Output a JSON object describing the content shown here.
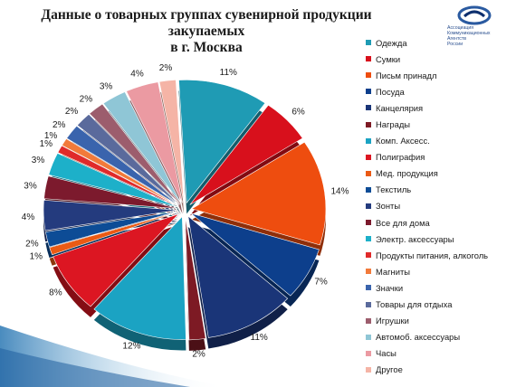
{
  "title_lines": [
    "Данные о товарных группах сувенирной продукции закупаемых",
    "в г. Москва"
  ],
  "logo": {
    "lines": [
      "Ассоциация",
      "Коммуникационных",
      "Агентств",
      "России"
    ]
  },
  "chart_data": {
    "type": "pie",
    "title": "Данные о товарных группах сувенирной продукции закупаемых в г. Москва",
    "legend_position": "right",
    "style": "exploded-3d",
    "slices": [
      {
        "label": "Одежда",
        "value": 11,
        "display": "11%",
        "color": "#1f9bb4"
      },
      {
        "label": "Сумки",
        "value": 6,
        "display": "6%",
        "color": "#d8101c"
      },
      {
        "label": "Письм принадл",
        "value": 14,
        "display": "14%",
        "color": "#ee4d0f"
      },
      {
        "label": "Посуда",
        "value": 7,
        "display": "7%",
        "color": "#0d3f8c"
      },
      {
        "label": "Канцелярия",
        "value": 11,
        "display": "11%",
        "color": "#1a3578"
      },
      {
        "label": "Награды",
        "value": 2,
        "display": "2%",
        "color": "#7d1a24"
      },
      {
        "label": "Комп. Аксесс.",
        "value": 12,
        "display": "12%",
        "color": "#1ba3c3"
      },
      {
        "label": "Полиграфия",
        "value": 8,
        "display": "8%",
        "color": "#dc1622"
      },
      {
        "label": "Мед. продукция",
        "value": 1,
        "display": "1%",
        "color": "#ea5a14"
      },
      {
        "label": "Текстиль",
        "value": 2,
        "display": "2%",
        "color": "#0d4c96"
      },
      {
        "label": "Зонты",
        "value": 4,
        "display": "4%",
        "color": "#243b7e"
      },
      {
        "label": "Все для дома",
        "value": 3,
        "display": "3%",
        "color": "#7c1a2d"
      },
      {
        "label": "Электр. аксессуары",
        "value": 3,
        "display": "3%",
        "color": "#1db0c9"
      },
      {
        "label": "Продукты питания, алкоголь",
        "value": 1,
        "display": "1%",
        "color": "#e02a2a"
      },
      {
        "label": "Магниты",
        "value": 1,
        "display": "1%",
        "color": "#f27a3a"
      },
      {
        "label": "Значки",
        "value": 2,
        "display": "2%",
        "color": "#3a64ad"
      },
      {
        "label": "Товары для отдыха",
        "value": 2,
        "display": "2%",
        "color": "#5a6a9c"
      },
      {
        "label": "Игрушки",
        "value": 2,
        "display": "2%",
        "color": "#9c5d6d"
      },
      {
        "label": "Автомоб. аксессуары",
        "value": 3,
        "display": "3%",
        "color": "#8fc6d6"
      },
      {
        "label": "Часы",
        "value": 4,
        "display": "4%",
        "color": "#eb9aa2"
      },
      {
        "label": "Другое",
        "value": 2,
        "display": "2%",
        "color": "#f5b4a6"
      }
    ]
  }
}
